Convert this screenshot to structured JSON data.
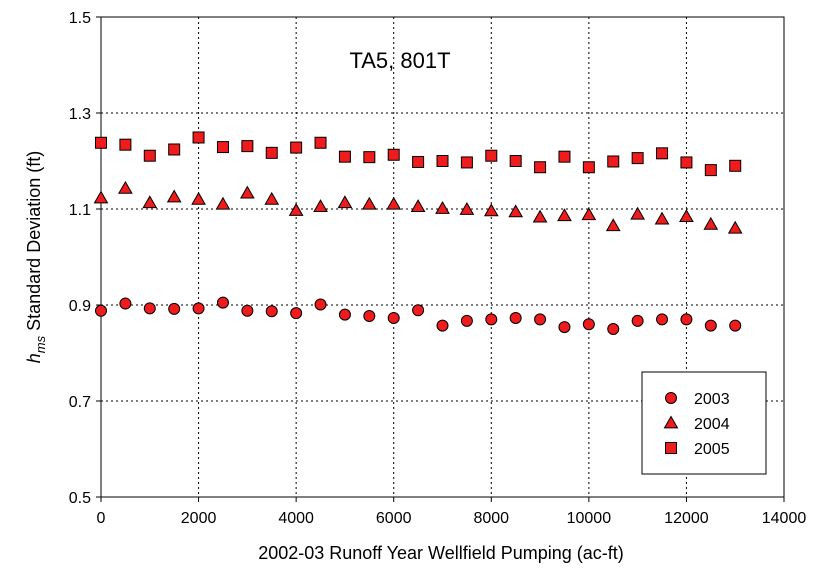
{
  "chart_data": {
    "type": "scatter",
    "title": "",
    "annotation": "TA5, 801T",
    "xlabel": "2002-03 Runoff Year Wellfield Pumping (ac-ft)",
    "ylabel_main": "h",
    "ylabel_sub": "ms",
    "ylabel_rest": " Standard Deviation (ft)",
    "xlim": [
      0,
      14000
    ],
    "ylim": [
      0.5,
      1.5
    ],
    "x_ticks": [
      0,
      2000,
      4000,
      6000,
      8000,
      10000,
      12000,
      14000
    ],
    "y_ticks": [
      0.5,
      0.7,
      0.9,
      1.1,
      1.3,
      1.5
    ],
    "y_tick_labels": [
      "0.5",
      "0.7",
      "0.9",
      "1.1",
      "1.3",
      "1.5"
    ],
    "grid": true,
    "legend_position": "bottom-right",
    "marker_color": "#ee1c1c",
    "x": [
      0,
      500,
      1000,
      1500,
      2000,
      2500,
      3000,
      3500,
      4000,
      4500,
      5000,
      5500,
      6000,
      6500,
      7000,
      7500,
      8000,
      8500,
      9000,
      9500,
      10000,
      10500,
      11000,
      11500,
      12000,
      12500,
      13000
    ],
    "series": [
      {
        "name": "2003",
        "marker": "circle",
        "values": [
          0.888,
          0.903,
          0.893,
          0.892,
          0.893,
          0.905,
          0.888,
          0.887,
          0.883,
          0.901,
          0.88,
          0.877,
          0.873,
          0.889,
          0.857,
          0.867,
          0.87,
          0.873,
          0.87,
          0.854,
          0.86,
          0.85,
          0.867,
          0.87,
          0.87,
          0.857,
          0.857
        ]
      },
      {
        "name": "2004",
        "marker": "triangle",
        "values": [
          1.123,
          1.143,
          1.113,
          1.125,
          1.12,
          1.11,
          1.133,
          1.12,
          1.097,
          1.105,
          1.113,
          1.11,
          1.11,
          1.105,
          1.101,
          1.099,
          1.096,
          1.094,
          1.083,
          1.086,
          1.088,
          1.065,
          1.089,
          1.079,
          1.084,
          1.068,
          1.06
        ]
      },
      {
        "name": "2005",
        "marker": "square",
        "values": [
          1.238,
          1.234,
          1.211,
          1.224,
          1.249,
          1.229,
          1.231,
          1.217,
          1.228,
          1.238,
          1.209,
          1.208,
          1.213,
          1.198,
          1.2,
          1.197,
          1.211,
          1.2,
          1.187,
          1.209,
          1.187,
          1.199,
          1.206,
          1.216,
          1.197,
          1.181,
          1.19
        ]
      }
    ]
  }
}
